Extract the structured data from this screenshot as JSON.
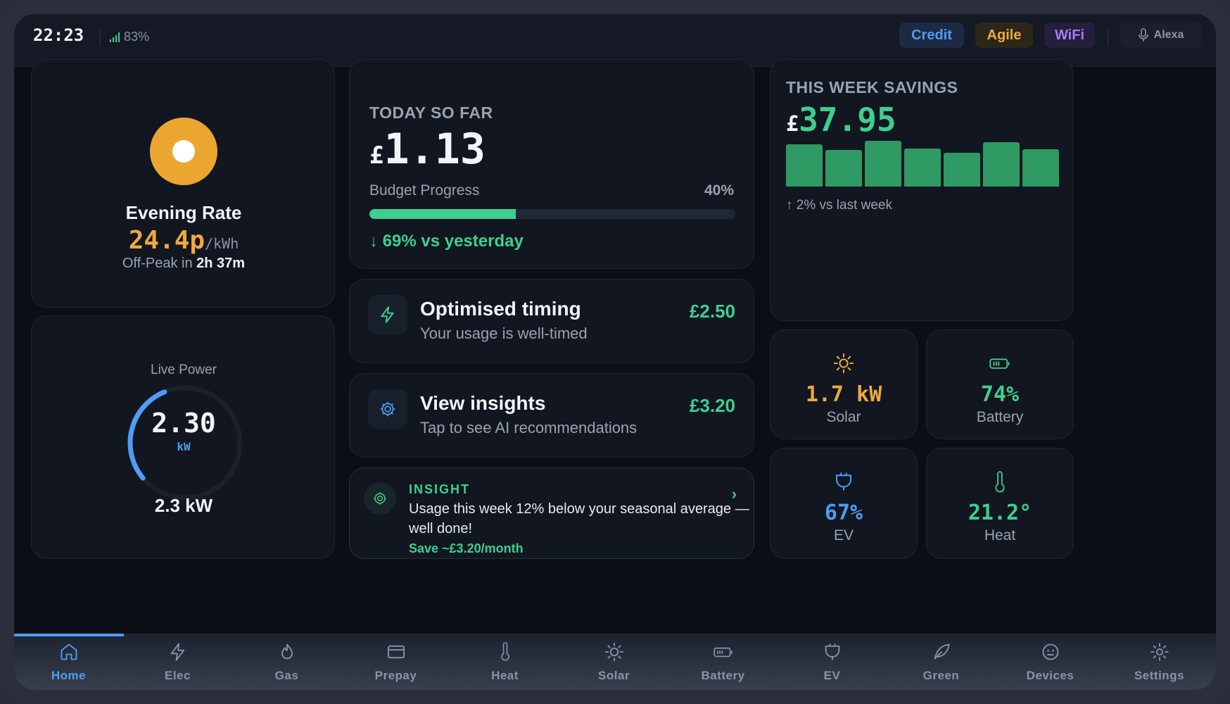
{
  "status_bar": {
    "time": "22:23",
    "signal_percent": "83%",
    "chips": {
      "credit": "Credit",
      "agile": "Agile",
      "wifi": "WiFi"
    },
    "voice_assistant": "Alexa"
  },
  "rate_card": {
    "icon": "sun-disc-icon",
    "title": "Evening Rate",
    "price": "24.4p",
    "unit": "/kWh",
    "offpeak_prefix": "Off-Peak in",
    "offpeak_time": "2h 37m"
  },
  "live_power": {
    "label": "Live Power",
    "value": "2.30",
    "unit": "kW",
    "summary": "2.3 kW",
    "gauge_fraction": 0.3
  },
  "today": {
    "label": "TODAY SO FAR",
    "currency": "£",
    "amount": "1.13",
    "budget_label": "Budget Progress",
    "budget_percent_text": "40%",
    "budget_fraction": 0.4,
    "vs_yesterday": "↓ 69% vs yesterday"
  },
  "actions": [
    {
      "title": "Optimised timing",
      "subtitle": "Your usage is well-timed",
      "value": "£2.50",
      "icon": "lightning-icon"
    },
    {
      "title": "View insights",
      "subtitle": "Tap to see AI recommendations",
      "value": "£3.20",
      "icon": "gear-icon"
    }
  ],
  "insight": {
    "tag": "INSIGHT",
    "text": "Usage this week 12% below your seasonal average — well done!",
    "save": "Save ~£3.20/month",
    "chevron": "›"
  },
  "week": {
    "label": "THIS WEEK SAVINGS",
    "currency": "£",
    "amount": "37.95",
    "footer": "↑ 2% vs last week",
    "daily_levels": [
      0.88,
      0.76,
      0.95,
      0.8,
      0.7,
      0.92,
      0.78
    ]
  },
  "tiles": [
    {
      "value": "1.7 kW",
      "label": "Solar",
      "color": "#f0a93b",
      "icon": "sun-icon"
    },
    {
      "value": "74%",
      "label": "Battery",
      "color": "#3ecf8e",
      "icon": "battery-icon"
    },
    {
      "value": "67%",
      "label": "EV",
      "color": "#4d9df5",
      "icon": "plug-icon"
    },
    {
      "value": "21.2°",
      "label": "Heat",
      "color": "#3ecf8e",
      "icon": "thermometer-icon"
    }
  ],
  "nav": {
    "active": "Home",
    "items": [
      "Home",
      "Elec",
      "Gas",
      "Prepay",
      "Heat",
      "Solar",
      "Battery",
      "EV",
      "Green",
      "Devices",
      "Settings"
    ]
  },
  "colors": {
    "accent_green": "#3ecf8e",
    "accent_blue": "#4d9df5",
    "accent_orange": "#f0a93b",
    "accent_purple": "#a67cf5",
    "background": "#0b0e15",
    "card": "#111620"
  }
}
